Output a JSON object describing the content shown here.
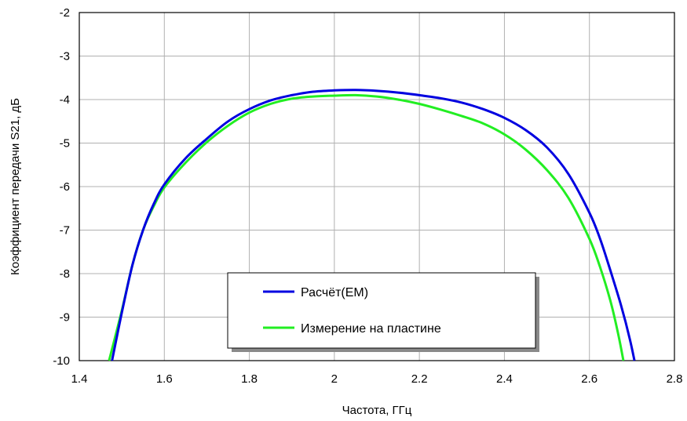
{
  "chart_data": {
    "type": "line",
    "title": "",
    "xlabel": "Частота, ГГц",
    "ylabel": "Коэффициент передачи S21, дБ",
    "xlim": [
      1.4,
      2.8
    ],
    "ylim": [
      -10,
      -2
    ],
    "x_ticks": [
      "1.4",
      "1.6",
      "1.8",
      "2",
      "2.2",
      "2.4",
      "2.6",
      "2.8"
    ],
    "y_ticks": [
      "-2",
      "-3",
      "-4",
      "-5",
      "-6",
      "-7",
      "-8",
      "-9",
      "-10"
    ],
    "grid": true,
    "legend_position": "bottom-center",
    "series": [
      {
        "name": "Расчёт(EM)",
        "color": "#0000e0",
        "points": [
          [
            1.477,
            -10
          ],
          [
            1.5,
            -8.9
          ],
          [
            1.525,
            -7.8
          ],
          [
            1.55,
            -7.0
          ],
          [
            1.575,
            -6.4
          ],
          [
            1.6,
            -5.95
          ],
          [
            1.65,
            -5.35
          ],
          [
            1.7,
            -4.9
          ],
          [
            1.75,
            -4.5
          ],
          [
            1.8,
            -4.22
          ],
          [
            1.85,
            -4.02
          ],
          [
            1.9,
            -3.9
          ],
          [
            1.95,
            -3.82
          ],
          [
            2.0,
            -3.79
          ],
          [
            2.05,
            -3.78
          ],
          [
            2.1,
            -3.8
          ],
          [
            2.15,
            -3.84
          ],
          [
            2.2,
            -3.9
          ],
          [
            2.25,
            -3.97
          ],
          [
            2.3,
            -4.07
          ],
          [
            2.35,
            -4.22
          ],
          [
            2.4,
            -4.42
          ],
          [
            2.45,
            -4.7
          ],
          [
            2.5,
            -5.1
          ],
          [
            2.55,
            -5.7
          ],
          [
            2.6,
            -6.6
          ],
          [
            2.625,
            -7.2
          ],
          [
            2.65,
            -7.95
          ],
          [
            2.675,
            -8.75
          ],
          [
            2.695,
            -9.5
          ],
          [
            2.706,
            -10
          ]
        ]
      },
      {
        "name": "Измерение на пластине",
        "color": "#22ee22",
        "points": [
          [
            1.47,
            -10
          ],
          [
            1.5,
            -8.85
          ],
          [
            1.525,
            -7.8
          ],
          [
            1.55,
            -7.0
          ],
          [
            1.575,
            -6.45
          ],
          [
            1.6,
            -6.02
          ],
          [
            1.65,
            -5.45
          ],
          [
            1.7,
            -4.98
          ],
          [
            1.75,
            -4.6
          ],
          [
            1.8,
            -4.3
          ],
          [
            1.85,
            -4.1
          ],
          [
            1.9,
            -3.98
          ],
          [
            1.95,
            -3.93
          ],
          [
            2.0,
            -3.91
          ],
          [
            2.05,
            -3.9
          ],
          [
            2.1,
            -3.93
          ],
          [
            2.15,
            -4.0
          ],
          [
            2.2,
            -4.1
          ],
          [
            2.25,
            -4.23
          ],
          [
            2.3,
            -4.38
          ],
          [
            2.35,
            -4.55
          ],
          [
            2.4,
            -4.8
          ],
          [
            2.45,
            -5.15
          ],
          [
            2.5,
            -5.62
          ],
          [
            2.55,
            -6.25
          ],
          [
            2.6,
            -7.2
          ],
          [
            2.625,
            -7.85
          ],
          [
            2.65,
            -8.65
          ],
          [
            2.668,
            -9.4
          ],
          [
            2.68,
            -10
          ]
        ]
      }
    ]
  }
}
